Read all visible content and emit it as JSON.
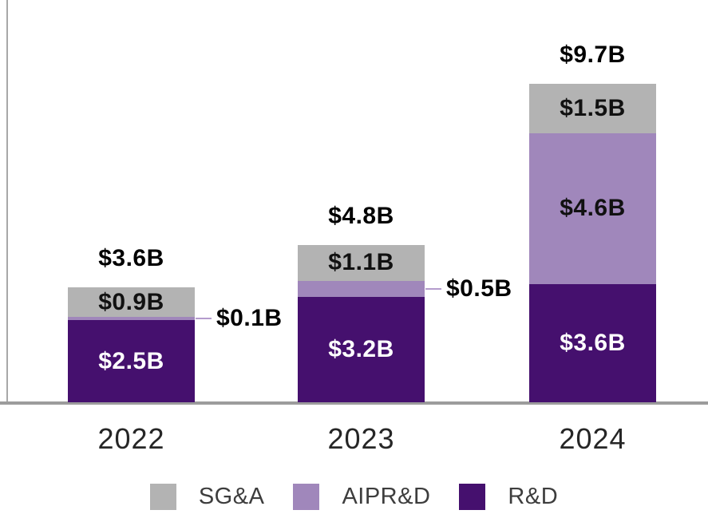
{
  "chart_data": {
    "type": "bar",
    "stacked": true,
    "title": "",
    "xlabel": "",
    "ylabel": "",
    "grid": false,
    "ylim": [
      0,
      9.7
    ],
    "categories": [
      "2022",
      "2023",
      "2024"
    ],
    "series": [
      {
        "name": "R&D",
        "color": "#45106e",
        "values": [
          2.5,
          3.2,
          3.6
        ],
        "labels": [
          "$2.5B",
          "$3.2B",
          "$3.6B"
        ],
        "label_color": "#ffffff",
        "label_placements": [
          "inside",
          "inside",
          "inside"
        ]
      },
      {
        "name": "AIPR&D",
        "color": "#a087bb",
        "values": [
          0.1,
          0.5,
          4.6
        ],
        "labels": [
          "$0.1B",
          "$0.5B",
          "$4.6B"
        ],
        "label_color": "#111111",
        "label_placements": [
          "outside",
          "outside",
          "inside"
        ]
      },
      {
        "name": "SG&A",
        "color": "#b3b3b3",
        "values": [
          0.9,
          1.1,
          1.5
        ],
        "labels": [
          "$0.9B",
          "$1.1B",
          "$1.5B"
        ],
        "label_color": "#111111",
        "label_placements": [
          "inside",
          "inside",
          "inside"
        ]
      }
    ],
    "totals": {
      "values": [
        3.6,
        4.8,
        9.7
      ],
      "labels": [
        "$3.6B",
        "$4.8B",
        "$9.7B"
      ]
    },
    "legend": [
      "SG&A",
      "AIPR&D",
      "R&D"
    ],
    "legend_position": "bottom",
    "axis_color": "#9c9c9c",
    "leader_line_color": "#b49ccd"
  }
}
